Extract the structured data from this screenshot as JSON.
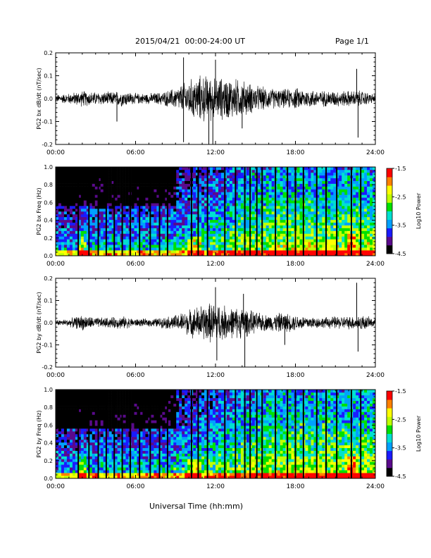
{
  "header": {
    "title": "2015/04/21  00:00-24:00 UT",
    "page": "Page 1/1"
  },
  "footer": {
    "xlabel": "Universal Time (hh:mm)"
  },
  "colors": {
    "trace": "#000000",
    "colormap": [
      "#000000",
      "#5a0a8c",
      "#1a1aff",
      "#00a0ff",
      "#00e0d0",
      "#00e000",
      "#c0ff00",
      "#ffff00",
      "#ff8000",
      "#ff0000"
    ]
  },
  "chart_data": [
    {
      "type": "line",
      "ylabel": "PG2 bx dB/dt (nT/sec)",
      "xlim": [
        "00:00",
        "24:00"
      ],
      "xticks": [
        "00:00",
        "06:00",
        "12:00",
        "18:00",
        "24:00"
      ],
      "ylim": [
        -0.2,
        0.2
      ],
      "yticks": [
        "-0.2",
        "-0.1",
        "0.0",
        "0.1",
        "0.2"
      ],
      "envelope": {
        "hours": [
          0,
          1,
          2,
          3,
          4,
          5,
          6,
          7,
          8,
          9,
          10,
          11,
          12,
          13,
          14,
          15,
          16,
          17,
          18,
          19,
          20,
          21,
          22,
          23,
          24
        ],
        "amplitude": [
          0.015,
          0.02,
          0.03,
          0.025,
          0.025,
          0.03,
          0.02,
          0.02,
          0.025,
          0.04,
          0.07,
          0.09,
          0.08,
          0.08,
          0.07,
          0.05,
          0.04,
          0.035,
          0.04,
          0.035,
          0.03,
          0.03,
          0.03,
          0.03,
          0.015
        ]
      },
      "spikes": [
        {
          "hour": 4.6,
          "value": -0.1
        },
        {
          "hour": 9.6,
          "value": 0.18
        },
        {
          "hour": 9.6,
          "value": -0.19
        },
        {
          "hour": 11.5,
          "value": -0.2
        },
        {
          "hour": 11.8,
          "value": -0.2
        },
        {
          "hour": 12.0,
          "value": 0.17
        },
        {
          "hour": 14.0,
          "value": -0.13
        },
        {
          "hour": 22.6,
          "value": 0.13
        },
        {
          "hour": 22.7,
          "value": -0.17
        }
      ]
    },
    {
      "type": "heatmap",
      "ylabel": "PG2 bx Freq (Hz)",
      "xlim": [
        "00:00",
        "24:00"
      ],
      "xticks": [
        "00:00",
        "06:00",
        "12:00",
        "18:00",
        "24:00"
      ],
      "ylim": [
        0.0,
        1.0
      ],
      "yticks": [
        "0.0",
        "0.2",
        "0.4",
        "0.6",
        "0.8",
        "1.0"
      ],
      "colorbar": {
        "label": "Log10 Power",
        "ticks": [
          "-1.5",
          "-2.5",
          "-3.5",
          "-4.5"
        ],
        "range": [
          -4.5,
          -1.5
        ]
      },
      "dropout_hours": [
        1.7,
        2.5,
        3.2,
        3.8,
        4.4,
        5.0,
        5.6,
        6.3,
        7.1,
        7.8,
        8.4,
        10.2,
        10.7,
        11.4,
        12.7,
        13.5,
        14.2,
        14.6,
        15.1,
        15.5,
        16.5,
        17.4,
        18.0,
        18.6,
        19.6,
        20.3,
        21.1,
        22.2,
        22.9
      ]
    },
    {
      "type": "line",
      "ylabel": "PG2 by dB/dt (nT/sec)",
      "xlim": [
        "00:00",
        "24:00"
      ],
      "xticks": [
        "00:00",
        "06:00",
        "12:00",
        "18:00",
        "24:00"
      ],
      "ylim": [
        -0.2,
        0.2
      ],
      "yticks": [
        "-0.2",
        "-0.1",
        "0.0",
        "0.1",
        "0.2"
      ],
      "envelope": {
        "hours": [
          0,
          1,
          2,
          3,
          4,
          5,
          6,
          7,
          8,
          9,
          10,
          11,
          12,
          13,
          14,
          15,
          16,
          17,
          18,
          19,
          20,
          21,
          22,
          23,
          24
        ],
        "amplitude": [
          0.01,
          0.015,
          0.03,
          0.02,
          0.02,
          0.025,
          0.015,
          0.015,
          0.02,
          0.03,
          0.05,
          0.07,
          0.08,
          0.06,
          0.06,
          0.04,
          0.03,
          0.04,
          0.03,
          0.025,
          0.02,
          0.025,
          0.025,
          0.03,
          0.015
        ]
      },
      "spikes": [
        {
          "hour": 12.0,
          "value": 0.16
        },
        {
          "hour": 12.1,
          "value": -0.17
        },
        {
          "hour": 14.1,
          "value": 0.13
        },
        {
          "hour": 14.2,
          "value": -0.2
        },
        {
          "hour": 22.6,
          "value": 0.18
        },
        {
          "hour": 22.7,
          "value": -0.13
        },
        {
          "hour": 17.2,
          "value": -0.1
        }
      ]
    },
    {
      "type": "heatmap",
      "ylabel": "PG2 by Freq (Hz)",
      "xlim": [
        "00:00",
        "24:00"
      ],
      "xticks": [
        "00:00",
        "06:00",
        "12:00",
        "18:00",
        "24:00"
      ],
      "ylim": [
        0.0,
        1.0
      ],
      "yticks": [
        "0.0",
        "0.2",
        "0.4",
        "0.6",
        "0.8",
        "1.0"
      ],
      "colorbar": {
        "label": "Log10 Power",
        "ticks": [
          "-1.5",
          "-2.5",
          "-3.5",
          "-4.5"
        ],
        "range": [
          -4.5,
          -1.5
        ]
      },
      "dropout_hours": [
        1.7,
        2.5,
        3.2,
        3.8,
        4.4,
        5.0,
        5.6,
        6.3,
        7.1,
        7.8,
        8.4,
        10.2,
        10.7,
        11.4,
        12.7,
        13.5,
        14.2,
        14.6,
        15.1,
        15.5,
        16.5,
        17.4,
        18.0,
        18.6,
        19.6,
        20.3,
        21.1,
        22.2,
        22.9
      ]
    }
  ]
}
